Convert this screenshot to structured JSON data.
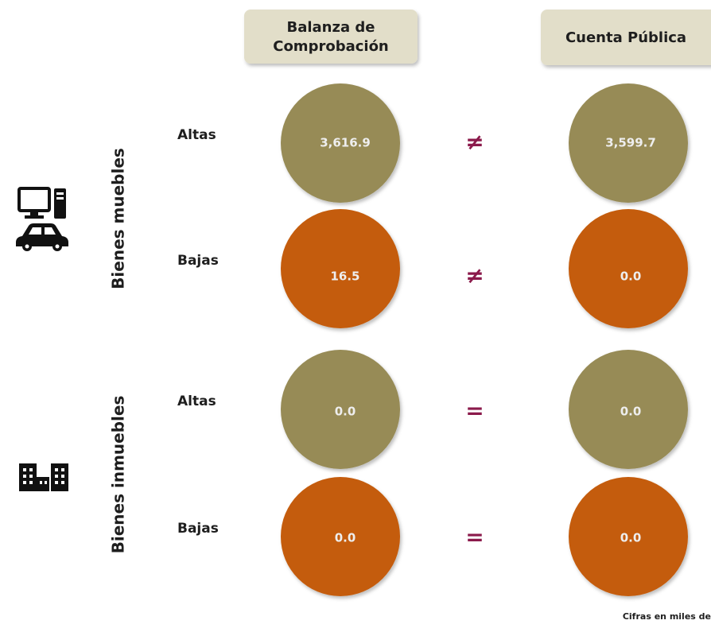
{
  "header": {
    "left_title": [
      "Balanza de",
      "Comprobación"
    ],
    "right_title": "Cuenta Pública"
  },
  "sections": [
    {
      "label": "Bienes muebles",
      "rows": [
        {
          "label": "Altas",
          "left": "3,616.9",
          "symbol": "≠",
          "right": "3,599.7",
          "color": "#978b57"
        },
        {
          "label": "Bajas",
          "left": "16.5",
          "symbol": "≠",
          "right": "0.0",
          "color": "#c45c0b"
        }
      ]
    },
    {
      "label": "Bienes inmuebles",
      "rows": [
        {
          "label": "Altas",
          "left": "0.0",
          "symbol": "=",
          "right": "0.0",
          "color": "#978b57"
        },
        {
          "label": "Bajas",
          "left": "0.0",
          "symbol": "=",
          "right": "0.0",
          "color": "#c45c0b"
        }
      ]
    }
  ],
  "footnote": "Cifras en miles de"
}
